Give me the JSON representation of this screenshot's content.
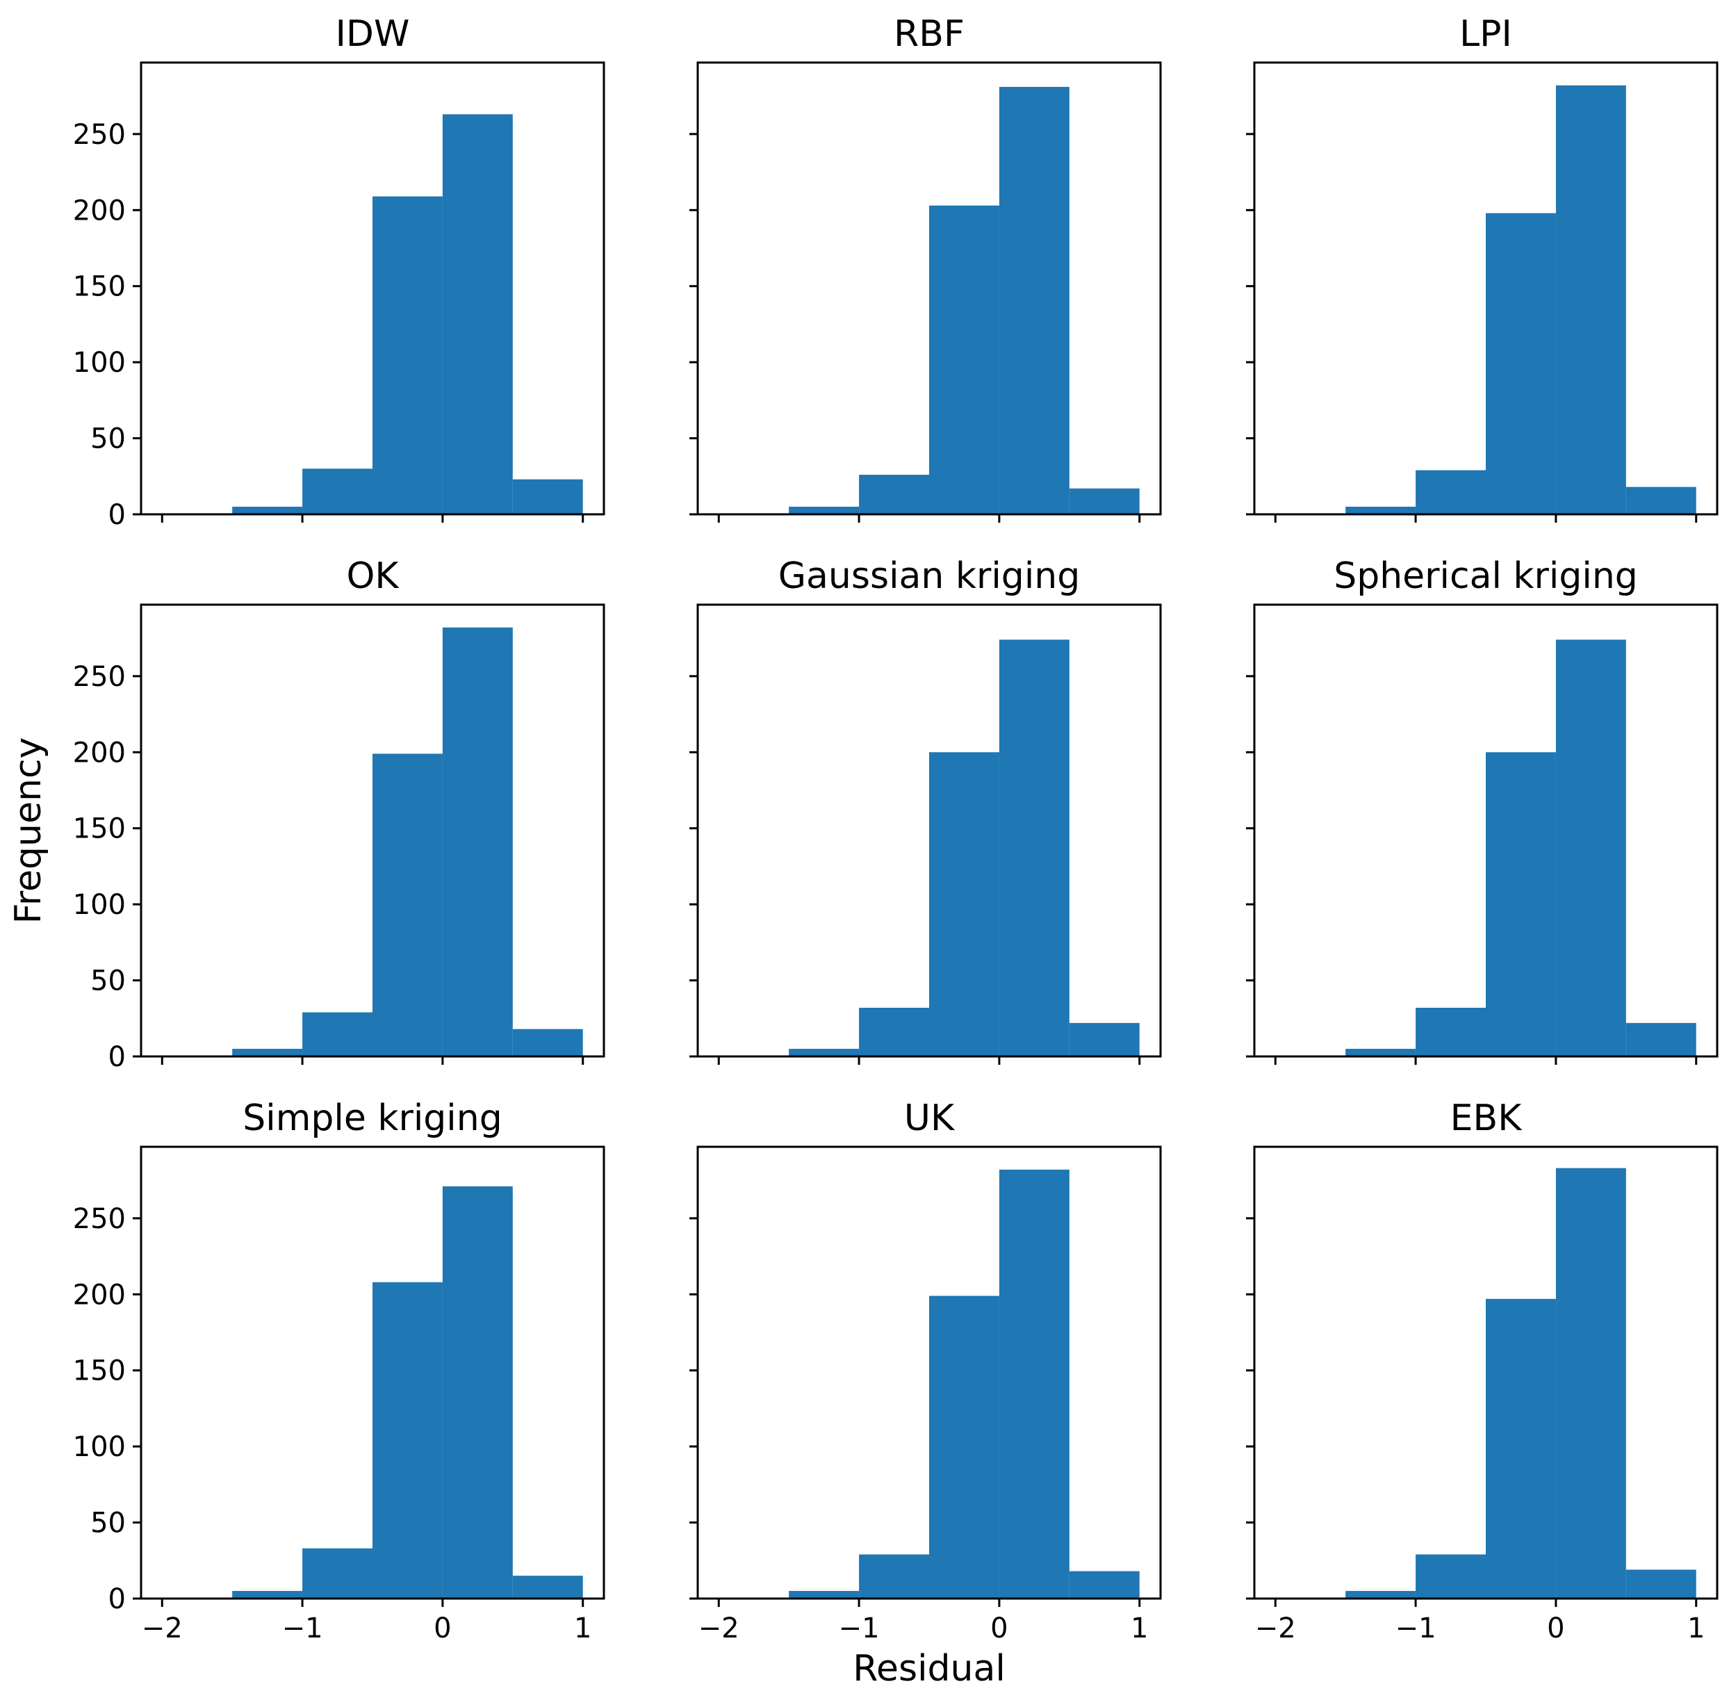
{
  "figure": {
    "xlabel": "Residual",
    "ylabel": "Frequency",
    "bar_color": "#1f77b4",
    "frame_color": "#000000"
  },
  "chart_data": [
    {
      "type": "bar",
      "title": "IDW",
      "bin_edges": [
        -2.0,
        -1.5,
        -1.0,
        -0.5,
        0.0,
        0.5,
        1.0
      ],
      "values": [
        0,
        5,
        30,
        209,
        263,
        23
      ],
      "xlim": [
        -2.15,
        1.15
      ],
      "ylim": [
        0,
        297
      ],
      "xticks": [
        -2,
        -1,
        0,
        1
      ],
      "yticks": [
        0,
        50,
        100,
        150,
        200,
        250
      ],
      "xticklabels": [
        "−2",
        "−1",
        "0",
        "1"
      ],
      "yticklabels": [
        "0",
        "50",
        "100",
        "150",
        "200",
        "250"
      ]
    },
    {
      "type": "bar",
      "title": "RBF",
      "bin_edges": [
        -2.0,
        -1.5,
        -1.0,
        -0.5,
        0.0,
        0.5,
        1.0
      ],
      "values": [
        0,
        5,
        26,
        203,
        281,
        17
      ],
      "xlim": [
        -2.15,
        1.15
      ],
      "ylim": [
        0,
        297
      ],
      "xticks": [
        -2,
        -1,
        0,
        1
      ],
      "yticks": [
        0,
        50,
        100,
        150,
        200,
        250
      ],
      "xticklabels": [
        "−2",
        "−1",
        "0",
        "1"
      ],
      "yticklabels": []
    },
    {
      "type": "bar",
      "title": "LPI",
      "bin_edges": [
        -2.0,
        -1.5,
        -1.0,
        -0.5,
        0.0,
        0.5,
        1.0
      ],
      "values": [
        0,
        5,
        29,
        198,
        282,
        18
      ],
      "xlim": [
        -2.15,
        1.15
      ],
      "ylim": [
        0,
        297
      ],
      "xticks": [
        -2,
        -1,
        0,
        1
      ],
      "yticks": [
        0,
        50,
        100,
        150,
        200,
        250
      ],
      "xticklabels": [
        "−2",
        "−1",
        "0",
        "1"
      ],
      "yticklabels": []
    },
    {
      "type": "bar",
      "title": "OK",
      "bin_edges": [
        -2.0,
        -1.5,
        -1.0,
        -0.5,
        0.0,
        0.5,
        1.0
      ],
      "values": [
        0,
        5,
        29,
        199,
        282,
        18
      ],
      "xlim": [
        -2.15,
        1.15
      ],
      "ylim": [
        0,
        297
      ],
      "xticks": [
        -2,
        -1,
        0,
        1
      ],
      "yticks": [
        0,
        50,
        100,
        150,
        200,
        250
      ],
      "xticklabels": [
        "−2",
        "−1",
        "0",
        "1"
      ],
      "yticklabels": [
        "0",
        "50",
        "100",
        "150",
        "200",
        "250"
      ]
    },
    {
      "type": "bar",
      "title": "Gaussian kriging",
      "bin_edges": [
        -2.0,
        -1.5,
        -1.0,
        -0.5,
        0.0,
        0.5,
        1.0
      ],
      "values": [
        0,
        5,
        32,
        200,
        274,
        22
      ],
      "xlim": [
        -2.15,
        1.15
      ],
      "ylim": [
        0,
        297
      ],
      "xticks": [
        -2,
        -1,
        0,
        1
      ],
      "yticks": [
        0,
        50,
        100,
        150,
        200,
        250
      ],
      "xticklabels": [
        "−2",
        "−1",
        "0",
        "1"
      ],
      "yticklabels": []
    },
    {
      "type": "bar",
      "title": "Spherical kriging",
      "bin_edges": [
        -2.0,
        -1.5,
        -1.0,
        -0.5,
        0.0,
        0.5,
        1.0
      ],
      "values": [
        0,
        5,
        32,
        200,
        274,
        22
      ],
      "xlim": [
        -2.15,
        1.15
      ],
      "ylim": [
        0,
        297
      ],
      "xticks": [
        -2,
        -1,
        0,
        1
      ],
      "yticks": [
        0,
        50,
        100,
        150,
        200,
        250
      ],
      "xticklabels": [
        "−2",
        "−1",
        "0",
        "1"
      ],
      "yticklabels": []
    },
    {
      "type": "bar",
      "title": "Simple kriging",
      "bin_edges": [
        -2.0,
        -1.5,
        -1.0,
        -0.5,
        0.0,
        0.5,
        1.0
      ],
      "values": [
        0,
        5,
        33,
        208,
        271,
        15
      ],
      "xlim": [
        -2.15,
        1.15
      ],
      "ylim": [
        0,
        297
      ],
      "xticks": [
        -2,
        -1,
        0,
        1
      ],
      "yticks": [
        0,
        50,
        100,
        150,
        200,
        250
      ],
      "xticklabels": [
        "−2",
        "−1",
        "0",
        "1"
      ],
      "yticklabels": [
        "0",
        "50",
        "100",
        "150",
        "200",
        "250"
      ]
    },
    {
      "type": "bar",
      "title": "UK",
      "bin_edges": [
        -2.0,
        -1.5,
        -1.0,
        -0.5,
        0.0,
        0.5,
        1.0
      ],
      "values": [
        0,
        5,
        29,
        199,
        282,
        18
      ],
      "xlim": [
        -2.15,
        1.15
      ],
      "ylim": [
        0,
        297
      ],
      "xticks": [
        -2,
        -1,
        0,
        1
      ],
      "yticks": [
        0,
        50,
        100,
        150,
        200,
        250
      ],
      "xticklabels": [
        "−2",
        "−1",
        "0",
        "1"
      ],
      "yticklabels": []
    },
    {
      "type": "bar",
      "title": "EBK",
      "bin_edges": [
        -2.0,
        -1.5,
        -1.0,
        -0.5,
        0.0,
        0.5,
        1.0
      ],
      "values": [
        0,
        5,
        29,
        197,
        283,
        19
      ],
      "xlim": [
        -2.15,
        1.15
      ],
      "ylim": [
        0,
        297
      ],
      "xticks": [
        -2,
        -1,
        0,
        1
      ],
      "yticks": [
        0,
        50,
        100,
        150,
        200,
        250
      ],
      "xticklabels": [
        "−2",
        "−1",
        "0",
        "1"
      ],
      "yticklabels": []
    }
  ]
}
